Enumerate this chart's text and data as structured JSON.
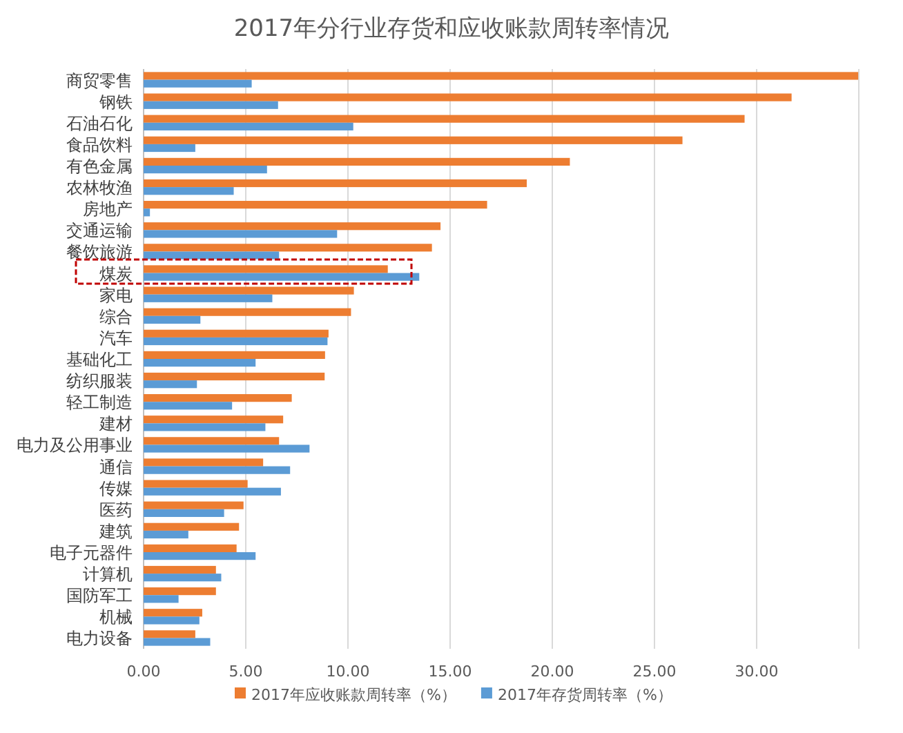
{
  "chart_data": {
    "type": "bar",
    "orientation": "horizontal",
    "title": "2017年分行业存货和应收账款周转率情况",
    "categories": [
      "商贸零售",
      "钢铁",
      "石油石化",
      "食品饮料",
      "有色金属",
      "农林牧渔",
      "房地产",
      "交通运输",
      "餐饮旅游",
      "煤炭",
      "家电",
      "综合",
      "汽车",
      "基础化工",
      "纺织服装",
      "轻工制造",
      "建材",
      "电力及公用事业",
      "通信",
      "传媒",
      "医药",
      "建筑",
      "电子元器件",
      "计算机",
      "国防军工",
      "机械",
      "电力设备"
    ],
    "series": [
      {
        "name": "2017年应收账款周转率（%）",
        "color": "#ed7d31",
        "values": [
          34.97,
          31.71,
          29.41,
          26.37,
          20.86,
          18.75,
          16.81,
          14.53,
          14.11,
          11.95,
          10.29,
          10.15,
          9.05,
          8.88,
          8.86,
          7.25,
          6.83,
          6.63,
          5.85,
          5.09,
          4.89,
          4.67,
          4.55,
          3.54,
          3.54,
          2.87,
          2.53
        ]
      },
      {
        "name": "2017年存货周转率（%）",
        "color": "#5b9bd5",
        "values": [
          5.29,
          6.58,
          10.26,
          2.53,
          6.04,
          4.41,
          0.31,
          9.47,
          6.63,
          13.49,
          6.3,
          2.78,
          9.0,
          5.48,
          2.61,
          4.33,
          5.96,
          8.12,
          7.17,
          6.72,
          3.94,
          2.19,
          5.48,
          3.8,
          1.71,
          2.73,
          3.26
        ]
      }
    ],
    "xlim": [
      0,
      35
    ],
    "xticks": [
      {
        "value": 0,
        "label": "0.00"
      },
      {
        "value": 5,
        "label": "5.00"
      },
      {
        "value": 10,
        "label": "10.00"
      },
      {
        "value": 15,
        "label": "15.00"
      },
      {
        "value": 20,
        "label": "20.00"
      },
      {
        "value": 25,
        "label": "25.00"
      },
      {
        "value": 30,
        "label": "30.00"
      },
      {
        "value": 35,
        "label": null
      }
    ],
    "grid": "x",
    "legend": "bottom"
  }
}
